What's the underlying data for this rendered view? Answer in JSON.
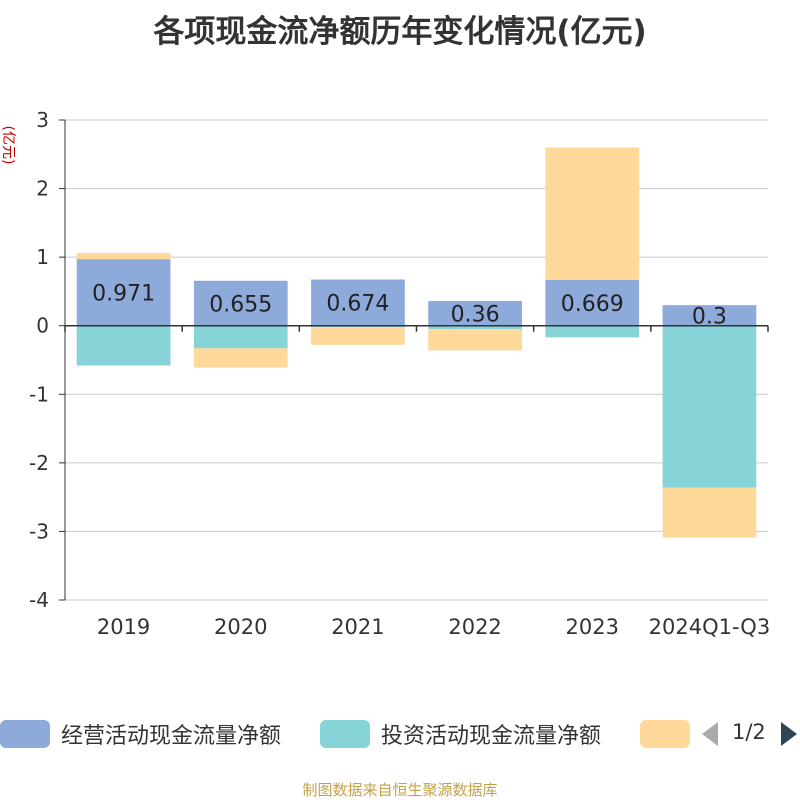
{
  "title": "各项现金流净额历年变化情况(亿元)",
  "source_note": "制图数据来自恒生聚源数据库",
  "legend": {
    "items": [
      {
        "label": "经营活动现金流量净额",
        "color": "#8eaadb"
      },
      {
        "label": "投资活动现金流量净额",
        "color": "#86d4d8"
      },
      {
        "label": "",
        "color": "#fed99a"
      }
    ],
    "pager": "1/2"
  },
  "chart_data": {
    "type": "bar",
    "stacked": true,
    "title": "各项现金流净额历年变化情况(亿元)",
    "ylabel": "(亿元)",
    "xlabel": "",
    "ylim": [
      -4,
      3
    ],
    "yticks": [
      3,
      2,
      1,
      0,
      -1,
      -2,
      -3,
      -4
    ],
    "grid": true,
    "legend_position": "bottom",
    "categories": [
      "2019",
      "2020",
      "2021",
      "2022",
      "2023",
      "2024Q1-Q3"
    ],
    "series": [
      {
        "name": "经营活动现金流量净额",
        "color": "#8eaadb",
        "values": [
          0.971,
          0.655,
          0.674,
          0.36,
          0.669,
          0.3
        ],
        "labeled": true
      },
      {
        "name": "投资活动现金流量净额",
        "color": "#86d4d8",
        "values": [
          -0.58,
          -0.33,
          -0.02,
          -0.05,
          -0.17,
          -2.36
        ],
        "labeled": false
      },
      {
        "name": "",
        "color": "#fed99a",
        "values": [
          0.09,
          -0.28,
          -0.26,
          -0.31,
          1.93,
          -0.73
        ],
        "labeled": false
      }
    ],
    "data_labels": [
      "0.971",
      "0.655",
      "0.674",
      "0.36",
      "0.669",
      "0.3"
    ]
  }
}
